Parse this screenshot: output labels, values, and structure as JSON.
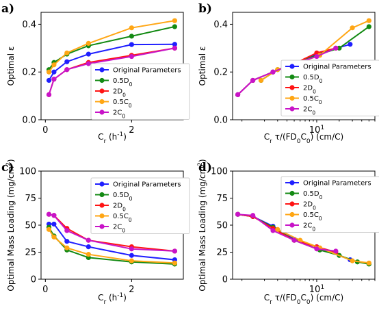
{
  "colors": {
    "blue": "#1f1fff",
    "green": "#138a13",
    "red": "#ff1414",
    "orange": "#ffa614",
    "purple": "#c814c8"
  },
  "chart_data": [
    {
      "panel": "a)",
      "type": "line",
      "xlabel": "C_r (h^-1)",
      "ylabel": "Optimal ε",
      "xlim": [
        -0.1,
        3.2
      ],
      "ylim": [
        0,
        0.45
      ],
      "xscale": "linear",
      "xticks": [
        0,
        2
      ],
      "xtick_labels": [
        "0",
        "2"
      ],
      "yticks": [
        0,
        0.2,
        0.4
      ],
      "ytick_labels": [
        "0.0",
        "0.2",
        "0.4"
      ],
      "legend": "lower-right",
      "series": [
        {
          "name": "Original Parameters",
          "color": "blue",
          "points": [
            [
              0.083,
              0.165
            ],
            [
              0.2,
              0.2
            ],
            [
              0.5,
              0.243
            ],
            [
              1.0,
              0.275
            ],
            [
              2.0,
              0.315
            ],
            [
              3.0,
              0.316
            ]
          ]
        },
        {
          "name": "0.5D0",
          "color": "green",
          "points": [
            [
              0.083,
              0.21
            ],
            [
              0.2,
              0.24
            ],
            [
              0.5,
              0.275
            ],
            [
              1.0,
              0.31
            ],
            [
              2.0,
              0.35
            ],
            [
              3.0,
              0.39
            ]
          ]
        },
        {
          "name": "2D0",
          "color": "red",
          "points": [
            [
              0.083,
              0.105
            ],
            [
              0.2,
              0.17
            ],
            [
              0.5,
              0.21
            ],
            [
              1.0,
              0.24
            ],
            [
              2.0,
              0.27
            ],
            [
              3.0,
              0.3
            ]
          ]
        },
        {
          "name": "0.5C0",
          "color": "orange",
          "points": [
            [
              0.083,
              0.2
            ],
            [
              0.2,
              0.23
            ],
            [
              0.5,
              0.28
            ],
            [
              1.0,
              0.32
            ],
            [
              2.0,
              0.385
            ],
            [
              3.0,
              0.415
            ]
          ]
        },
        {
          "name": "2C0",
          "color": "purple",
          "points": [
            [
              0.083,
              0.105
            ],
            [
              0.2,
              0.17
            ],
            [
              0.5,
              0.21
            ],
            [
              1.0,
              0.235
            ],
            [
              2.0,
              0.265
            ],
            [
              3.0,
              0.3
            ]
          ]
        }
      ]
    },
    {
      "panel": "b)",
      "type": "line",
      "xlabel": "C_r τ/(FD0C0) (cm/C)",
      "ylabel": "Optimal ε",
      "xlim": [
        0.75,
        60
      ],
      "ylim": [
        0,
        0.45
      ],
      "xscale": "log",
      "xticks": [
        10
      ],
      "xtick_labels": [
        "10^1"
      ],
      "yticks": [
        0,
        0.2,
        0.4
      ],
      "ytick_labels": [
        "0.0",
        "0.2",
        "0.4"
      ],
      "legend": "lower-right",
      "series": [
        {
          "name": "Original Parameters",
          "color": "blue",
          "points": [
            [
              0.88,
              0.105
            ],
            [
              1.4,
              0.165
            ],
            [
              2.6,
              0.2
            ],
            [
              5.0,
              0.235
            ],
            [
              10,
              0.275
            ],
            [
              28,
              0.316
            ]
          ]
        },
        {
          "name": "0.5D0",
          "color": "green",
          "points": [
            [
              1.8,
              0.165
            ],
            [
              3.0,
              0.21
            ],
            [
              5.5,
              0.24
            ],
            [
              11,
              0.275
            ],
            [
              20,
              0.3
            ],
            [
              50,
              0.39
            ]
          ]
        },
        {
          "name": "2D0",
          "color": "red",
          "points": [
            [
              0.88,
              0.105
            ],
            [
              1.4,
              0.165
            ],
            [
              2.6,
              0.2
            ],
            [
              5.0,
              0.235
            ],
            [
              10,
              0.28
            ],
            [
              18,
              0.3
            ]
          ]
        },
        {
          "name": "0.5C0",
          "color": "orange",
          "points": [
            [
              1.8,
              0.165
            ],
            [
              3.0,
              0.21
            ],
            [
              6.0,
              0.24
            ],
            [
              11,
              0.27
            ],
            [
              30,
              0.385
            ],
            [
              50,
              0.415
            ]
          ]
        },
        {
          "name": "2C0",
          "color": "purple",
          "points": [
            [
              0.88,
              0.105
            ],
            [
              1.4,
              0.165
            ],
            [
              2.6,
              0.2
            ],
            [
              5.0,
              0.235
            ],
            [
              10,
              0.265
            ],
            [
              18,
              0.3
            ]
          ]
        }
      ]
    },
    {
      "panel": "c)",
      "type": "line",
      "xlabel": "C_r (h^-1)",
      "ylabel": "Optimal Mass Loading (mg/cm^2)",
      "xlim": [
        -0.1,
        3.2
      ],
      "ylim": [
        0,
        100
      ],
      "xscale": "linear",
      "xticks": [
        0,
        2
      ],
      "xtick_labels": [
        "0",
        "2"
      ],
      "yticks": [
        0,
        25,
        50,
        75,
        100
      ],
      "ytick_labels": [
        "0",
        "25",
        "50",
        "75",
        "100"
      ],
      "legend": "upper-right",
      "series": [
        {
          "name": "Original Parameters",
          "color": "blue",
          "points": [
            [
              0.083,
              51
            ],
            [
              0.2,
              51
            ],
            [
              0.5,
              35
            ],
            [
              1.0,
              30
            ],
            [
              2.0,
              22
            ],
            [
              3.0,
              18
            ]
          ]
        },
        {
          "name": "0.5D0",
          "color": "green",
          "points": [
            [
              0.083,
              48
            ],
            [
              0.2,
              40
            ],
            [
              0.5,
              27
            ],
            [
              1.0,
              20
            ],
            [
              2.0,
              16
            ],
            [
              3.0,
              14
            ]
          ]
        },
        {
          "name": "2D0",
          "color": "red",
          "points": [
            [
              0.083,
              60
            ],
            [
              0.2,
              59
            ],
            [
              0.5,
              47
            ],
            [
              1.0,
              36
            ],
            [
              2.0,
              30
            ],
            [
              3.0,
              26
            ]
          ]
        },
        {
          "name": "0.5C0",
          "color": "orange",
          "points": [
            [
              0.083,
              46
            ],
            [
              0.2,
              39
            ],
            [
              0.5,
              29
            ],
            [
              1.0,
              23
            ],
            [
              2.0,
              17
            ],
            [
              3.0,
              15
            ]
          ]
        },
        {
          "name": "2C0",
          "color": "purple",
          "points": [
            [
              0.083,
              60
            ],
            [
              0.2,
              59
            ],
            [
              0.5,
              45
            ],
            [
              1.0,
              36
            ],
            [
              2.0,
              28
            ],
            [
              3.0,
              26
            ]
          ]
        }
      ]
    },
    {
      "panel": "d)",
      "type": "line",
      "xlabel": "C_r τ/(FD0C0) (cm/C)",
      "ylabel": "Optimal Mass Loading (mg/cm^2)",
      "xlim": [
        0.75,
        60
      ],
      "ylim": [
        0,
        100
      ],
      "xscale": "log",
      "xticks": [
        10
      ],
      "xtick_labels": [
        "10^1"
      ],
      "yticks": [
        0,
        25,
        50,
        75,
        100
      ],
      "ytick_labels": [
        "0",
        "25",
        "50",
        "75",
        "100"
      ],
      "legend": "upper-right",
      "series": [
        {
          "name": "Original Parameters",
          "color": "blue",
          "points": [
            [
              0.88,
              60
            ],
            [
              1.4,
              58
            ],
            [
              2.6,
              49
            ],
            [
              5.0,
              37
            ],
            [
              10,
              30
            ],
            [
              28,
              18
            ]
          ]
        },
        {
          "name": "0.5D0",
          "color": "green",
          "points": [
            [
              0.88,
              60
            ],
            [
              1.4,
              58
            ],
            [
              2.6,
              48
            ],
            [
              5.0,
              36
            ],
            [
              11,
              27
            ],
            [
              20,
              22
            ],
            [
              35,
              16
            ],
            [
              50,
              14
            ]
          ]
        },
        {
          "name": "2D0",
          "color": "red",
          "points": [
            [
              0.88,
              60
            ],
            [
              1.4,
              58
            ],
            [
              2.6,
              47
            ],
            [
              5.0,
              36
            ],
            [
              10,
              30
            ],
            [
              18,
              25
            ]
          ]
        },
        {
          "name": "0.5C0",
          "color": "orange",
          "points": [
            [
              3.0,
              46
            ],
            [
              6.0,
              36
            ],
            [
              11,
              29
            ],
            [
              30,
              17
            ],
            [
              50,
              15
            ]
          ]
        },
        {
          "name": "2C0",
          "color": "purple",
          "points": [
            [
              0.88,
              60
            ],
            [
              1.4,
              59
            ],
            [
              2.6,
              45
            ],
            [
              5.0,
              36
            ],
            [
              10,
              28
            ],
            [
              18,
              26
            ]
          ]
        }
      ]
    }
  ]
}
